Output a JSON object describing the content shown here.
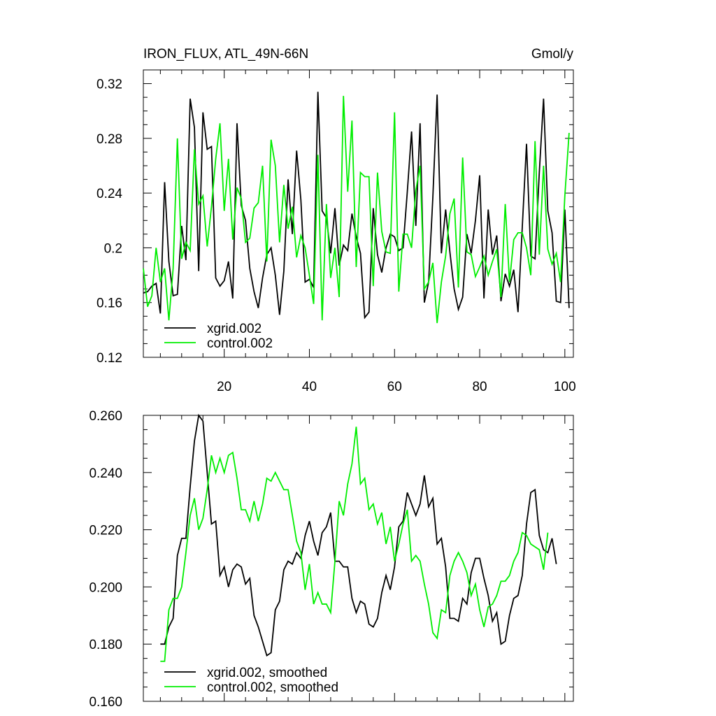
{
  "chart_data": [
    {
      "type": "line",
      "title": "IRON_FLUX, ATL_49N-66N",
      "units": "Gmol/y",
      "x": [
        1,
        2,
        3,
        4,
        5,
        6,
        7,
        8,
        9,
        10,
        11,
        12,
        13,
        14,
        15,
        16,
        17,
        18,
        19,
        20,
        21,
        22,
        23,
        24,
        25,
        26,
        27,
        28,
        29,
        30,
        31,
        32,
        33,
        34,
        35,
        36,
        37,
        38,
        39,
        40,
        41,
        42,
        43,
        44,
        45,
        46,
        47,
        48,
        49,
        50,
        51,
        52,
        53,
        54,
        55,
        56,
        57,
        58,
        59,
        60,
        61,
        62,
        63,
        64,
        65,
        66,
        67,
        68,
        69,
        70,
        71,
        72,
        73,
        74,
        75,
        76,
        77,
        78,
        79,
        80,
        81,
        82,
        83,
        84,
        85,
        86,
        87,
        88,
        89,
        90,
        91,
        92,
        93,
        94,
        95,
        96,
        97,
        98,
        99,
        100,
        101
      ],
      "series": [
        {
          "name": "xgrid.002",
          "color": "#000000",
          "values": [
            0.167,
            0.168,
            0.172,
            0.174,
            0.152,
            0.248,
            0.19,
            0.165,
            0.166,
            0.216,
            0.191,
            0.309,
            0.288,
            0.183,
            0.299,
            0.272,
            0.274,
            0.178,
            0.172,
            0.176,
            0.19,
            0.163,
            0.291,
            0.231,
            0.22,
            0.185,
            0.168,
            0.156,
            0.178,
            0.195,
            0.2,
            0.18,
            0.151,
            0.183,
            0.25,
            0.21,
            0.271,
            0.235,
            0.175,
            0.177,
            0.171,
            0.314,
            0.227,
            0.222,
            0.196,
            0.229,
            0.187,
            0.202,
            0.198,
            0.225,
            0.208,
            0.196,
            0.149,
            0.153,
            0.229,
            0.195,
            0.182,
            0.2,
            0.21,
            0.208,
            0.198,
            0.2,
            0.241,
            0.285,
            0.216,
            0.291,
            0.16,
            0.175,
            0.237,
            0.312,
            0.196,
            0.228,
            0.197,
            0.17,
            0.155,
            0.164,
            0.21,
            0.196,
            0.22,
            0.253,
            0.163,
            0.228,
            0.195,
            0.209,
            0.161,
            0.181,
            0.172,
            0.184,
            0.153,
            0.215,
            0.276,
            0.194,
            0.192,
            0.255,
            0.309,
            0.227,
            0.211,
            0.161,
            0.16,
            0.228,
            0.156
          ]
        },
        {
          "name": "control.002",
          "color": "#00ee00",
          "values": [
            0.185,
            0.157,
            0.165,
            0.2,
            0.175,
            0.185,
            0.147,
            0.185,
            0.28,
            0.192,
            0.204,
            0.198,
            0.272,
            0.232,
            0.238,
            0.201,
            0.23,
            0.265,
            0.291,
            0.227,
            0.265,
            0.206,
            0.244,
            0.236,
            0.204,
            0.207,
            0.229,
            0.233,
            0.26,
            0.19,
            0.279,
            0.26,
            0.204,
            0.246,
            0.214,
            0.23,
            0.193,
            0.209,
            0.2,
            0.18,
            0.159,
            0.268,
            0.147,
            0.232,
            0.178,
            0.2,
            0.164,
            0.311,
            0.241,
            0.293,
            0.186,
            0.255,
            0.252,
            0.252,
            0.172,
            0.255,
            0.212,
            0.197,
            0.196,
            0.299,
            0.168,
            0.21,
            0.21,
            0.2,
            0.242,
            0.26,
            0.17,
            0.175,
            0.189,
            0.145,
            0.175,
            0.194,
            0.225,
            0.236,
            0.171,
            0.266,
            0.197,
            0.195,
            0.179,
            0.186,
            0.194,
            0.18,
            0.19,
            0.199,
            0.164,
            0.232,
            0.175,
            0.206,
            0.211,
            0.211,
            0.2,
            0.18,
            0.278,
            0.195,
            0.26,
            0.199,
            0.188,
            0.196,
            0.175,
            0.238,
            0.284
          ]
        }
      ],
      "xlim": [
        1,
        102
      ],
      "xticks": [
        20,
        40,
        60,
        80,
        100
      ],
      "show_xtick_labels": true,
      "ylim": [
        0.12,
        0.33
      ],
      "yticks": [
        0.12,
        0.16,
        0.2,
        0.24,
        0.28,
        0.32
      ],
      "grid": false,
      "legend": "lower left"
    },
    {
      "type": "line",
      "x": [
        1,
        2,
        3,
        4,
        5,
        6,
        7,
        8,
        9,
        10,
        11,
        12,
        13,
        14,
        15,
        16,
        17,
        18,
        19,
        20,
        21,
        22,
        23,
        24,
        25,
        26,
        27,
        28,
        29,
        30,
        31,
        32,
        33,
        34,
        35,
        36,
        37,
        38,
        39,
        40,
        41,
        42,
        43,
        44,
        45,
        46,
        47,
        48,
        49,
        50,
        51,
        52,
        53,
        54,
        55,
        56,
        57,
        58,
        59,
        60,
        61,
        62,
        63,
        64,
        65,
        66,
        67,
        68,
        69,
        70,
        71,
        72,
        73,
        74,
        75,
        76,
        77,
        78,
        79,
        80,
        81,
        82,
        83,
        84,
        85,
        86,
        87,
        88,
        89,
        90,
        91,
        92,
        93,
        94,
        95,
        96,
        97,
        98,
        99,
        100,
        101
      ],
      "series": [
        {
          "name": "xgrid.002, smoothed",
          "color": "#000000",
          "values": [
            null,
            null,
            null,
            null,
            0.18,
            0.18,
            0.186,
            0.189,
            0.211,
            0.217,
            0.217,
            0.235,
            0.251,
            0.26,
            0.258,
            0.24,
            0.222,
            0.223,
            0.204,
            0.207,
            0.2,
            0.206,
            0.208,
            0.207,
            0.201,
            0.203,
            0.19,
            0.186,
            0.181,
            0.176,
            0.177,
            0.192,
            0.195,
            0.206,
            0.209,
            0.208,
            0.212,
            0.21,
            0.218,
            0.223,
            0.216,
            0.211,
            0.219,
            0.221,
            0.226,
            0.209,
            0.209,
            0.207,
            0.207,
            0.196,
            0.191,
            0.195,
            0.194,
            0.187,
            0.186,
            0.189,
            0.198,
            0.204,
            0.199,
            0.207,
            0.221,
            0.223,
            0.233,
            0.229,
            0.225,
            0.229,
            0.239,
            0.228,
            0.231,
            0.215,
            0.217,
            0.207,
            0.189,
            0.189,
            0.188,
            0.196,
            0.194,
            0.205,
            0.21,
            0.21,
            0.203,
            0.197,
            0.188,
            0.191,
            0.18,
            0.181,
            0.19,
            0.196,
            0.197,
            0.204,
            0.222,
            0.233,
            0.234,
            0.218,
            0.213,
            0.212,
            0.217,
            0.208,
            null,
            null,
            null
          ]
        },
        {
          "name": "control.002, smoothed",
          "color": "#00ee00",
          "values": [
            null,
            null,
            null,
            null,
            0.174,
            0.174,
            0.192,
            0.196,
            0.196,
            0.2,
            0.212,
            0.225,
            0.231,
            0.22,
            0.224,
            0.234,
            0.246,
            0.24,
            0.245,
            0.24,
            0.246,
            0.247,
            0.238,
            0.227,
            0.227,
            0.223,
            0.23,
            0.223,
            0.229,
            0.238,
            0.237,
            0.24,
            0.237,
            0.234,
            0.234,
            0.225,
            0.216,
            0.212,
            0.199,
            0.208,
            0.194,
            0.198,
            0.194,
            0.194,
            0.191,
            0.209,
            0.23,
            0.225,
            0.236,
            0.243,
            0.256,
            0.236,
            0.238,
            0.227,
            0.229,
            0.222,
            0.226,
            0.215,
            0.221,
            0.209,
            0.215,
            0.222,
            0.227,
            0.209,
            0.211,
            0.209,
            0.201,
            0.194,
            0.184,
            0.182,
            0.192,
            0.191,
            0.204,
            0.209,
            0.212,
            0.209,
            0.205,
            0.197,
            0.201,
            0.192,
            0.186,
            0.193,
            0.194,
            0.197,
            0.202,
            0.202,
            0.204,
            0.209,
            0.212,
            0.219,
            0.218,
            0.215,
            0.214,
            0.213,
            0.206,
            0.219,
            null,
            null,
            null,
            null,
            null
          ]
        }
      ],
      "xlim": [
        1,
        102
      ],
      "xticks": [
        20,
        40,
        60,
        80,
        100
      ],
      "show_xtick_labels": false,
      "ylim": [
        0.16,
        0.26
      ],
      "yticks": [
        {
          "value": 0.16,
          "label": "0.160"
        },
        {
          "value": 0.18,
          "label": "0.180"
        },
        {
          "value": 0.2,
          "label": "0.200"
        },
        {
          "value": 0.22,
          "label": "0.220"
        },
        {
          "value": 0.24,
          "label": "0.240"
        },
        {
          "value": 0.26,
          "label": "0.260"
        }
      ],
      "grid": false,
      "legend": "lower left"
    }
  ]
}
